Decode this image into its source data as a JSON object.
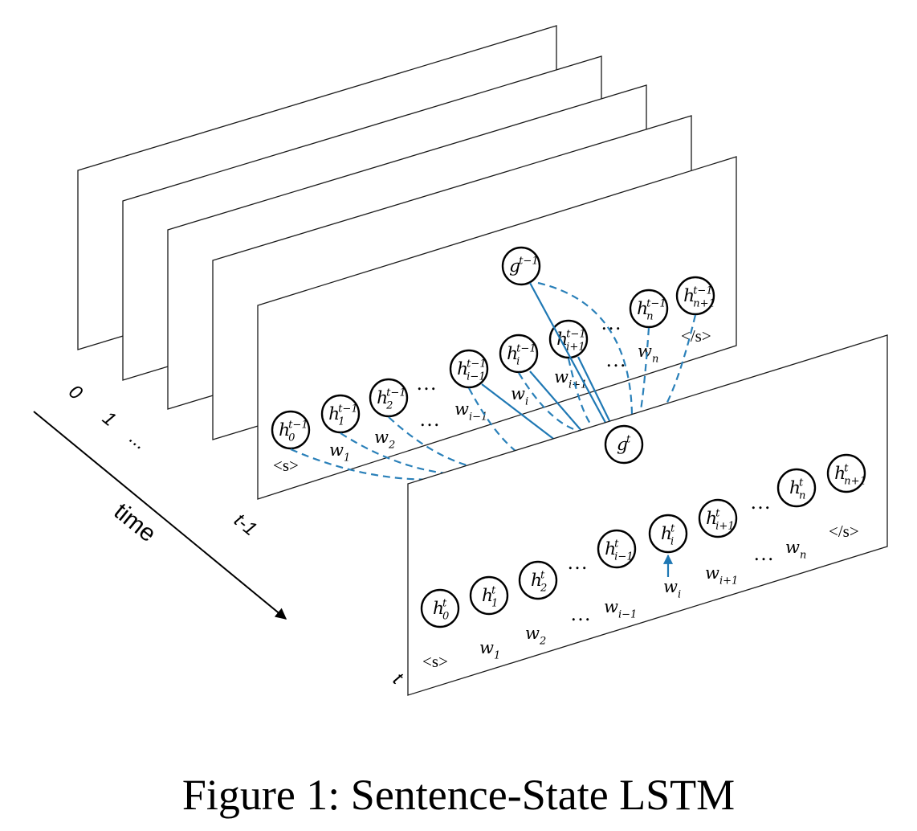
{
  "figure": {
    "caption": "Figure 1: Sentence-State LSTM"
  },
  "time_axis": {
    "label": "time",
    "ticks": [
      "0",
      "1",
      "...",
      "t-1",
      "t"
    ]
  },
  "layer_prev": {
    "hidden_nodes": [
      {
        "base": "h",
        "sup": "t−1",
        "sub": "0"
      },
      {
        "base": "h",
        "sup": "t−1",
        "sub": "1"
      },
      {
        "base": "h",
        "sup": "t−1",
        "sub": "2"
      },
      {
        "base": "h",
        "sup": "t−1",
        "sub": "i−1"
      },
      {
        "base": "h",
        "sup": "t−1",
        "sub": "i"
      },
      {
        "base": "h",
        "sup": "t−1",
        "sub": "i+1"
      },
      {
        "base": "h",
        "sup": "t−1",
        "sub": "n"
      },
      {
        "base": "h",
        "sup": "t−1",
        "sub": "n+1"
      }
    ],
    "global_node": {
      "base": "g",
      "sup": "t−1"
    },
    "words": [
      {
        "base": "<s>",
        "sub": ""
      },
      {
        "base": "w",
        "sub": "1"
      },
      {
        "base": "w",
        "sub": "2"
      },
      {
        "base": "w",
        "sub": "i−1"
      },
      {
        "base": "w",
        "sub": "i"
      },
      {
        "base": "w",
        "sub": "i+1"
      },
      {
        "base": "w",
        "sub": "n"
      },
      {
        "base": "</s>",
        "sub": ""
      }
    ],
    "ellipsis": "…"
  },
  "layer_curr": {
    "hidden_nodes": [
      {
        "base": "h",
        "sup": "t",
        "sub": "0"
      },
      {
        "base": "h",
        "sup": "t",
        "sub": "1"
      },
      {
        "base": "h",
        "sup": "t",
        "sub": "2"
      },
      {
        "base": "h",
        "sup": "t",
        "sub": "i−1"
      },
      {
        "base": "h",
        "sup": "t",
        "sub": "i"
      },
      {
        "base": "h",
        "sup": "t",
        "sub": "i+1"
      },
      {
        "base": "h",
        "sup": "t",
        "sub": "n"
      },
      {
        "base": "h",
        "sup": "t",
        "sub": "n+1"
      }
    ],
    "global_node": {
      "base": "g",
      "sup": "t"
    },
    "words": [
      {
        "base": "<s>",
        "sub": ""
      },
      {
        "base": "w",
        "sub": "1"
      },
      {
        "base": "w",
        "sub": "2"
      },
      {
        "base": "w",
        "sub": "i−1"
      },
      {
        "base": "w",
        "sub": "i"
      },
      {
        "base": "w",
        "sub": "i+1"
      },
      {
        "base": "w",
        "sub": "n"
      },
      {
        "base": "</s>",
        "sub": ""
      }
    ],
    "ellipsis": "…"
  },
  "colors": {
    "edge": "#1f78b4",
    "panel_stroke": "#1a1a1a",
    "node_stroke": "#000000"
  }
}
